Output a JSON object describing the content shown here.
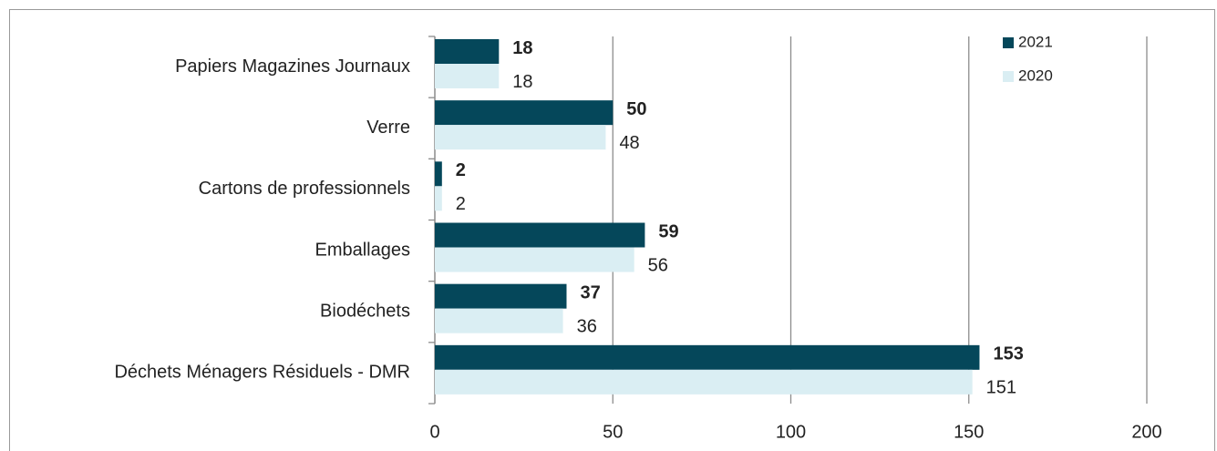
{
  "chart_data": {
    "type": "bar",
    "orientation": "horizontal",
    "categories": [
      "Papiers Magazines Journaux",
      "Verre",
      "Cartons de professionnels",
      "Emballages",
      "Biodéchets",
      "Déchets Ménagers Résiduels - DMR"
    ],
    "series": [
      {
        "name": "2021",
        "color": "#05475a",
        "label_color": "#1f3864",
        "values": [
          18,
          50,
          2,
          59,
          37,
          153
        ]
      },
      {
        "name": "2020",
        "color": "#daeef3",
        "label_color": "#92cddc",
        "values": [
          18,
          48,
          2,
          56,
          36,
          151
        ]
      }
    ],
    "xlim": [
      0,
      200
    ],
    "xticks": [
      0,
      50,
      100,
      150,
      200
    ],
    "grid": true,
    "legend": "top-right"
  }
}
